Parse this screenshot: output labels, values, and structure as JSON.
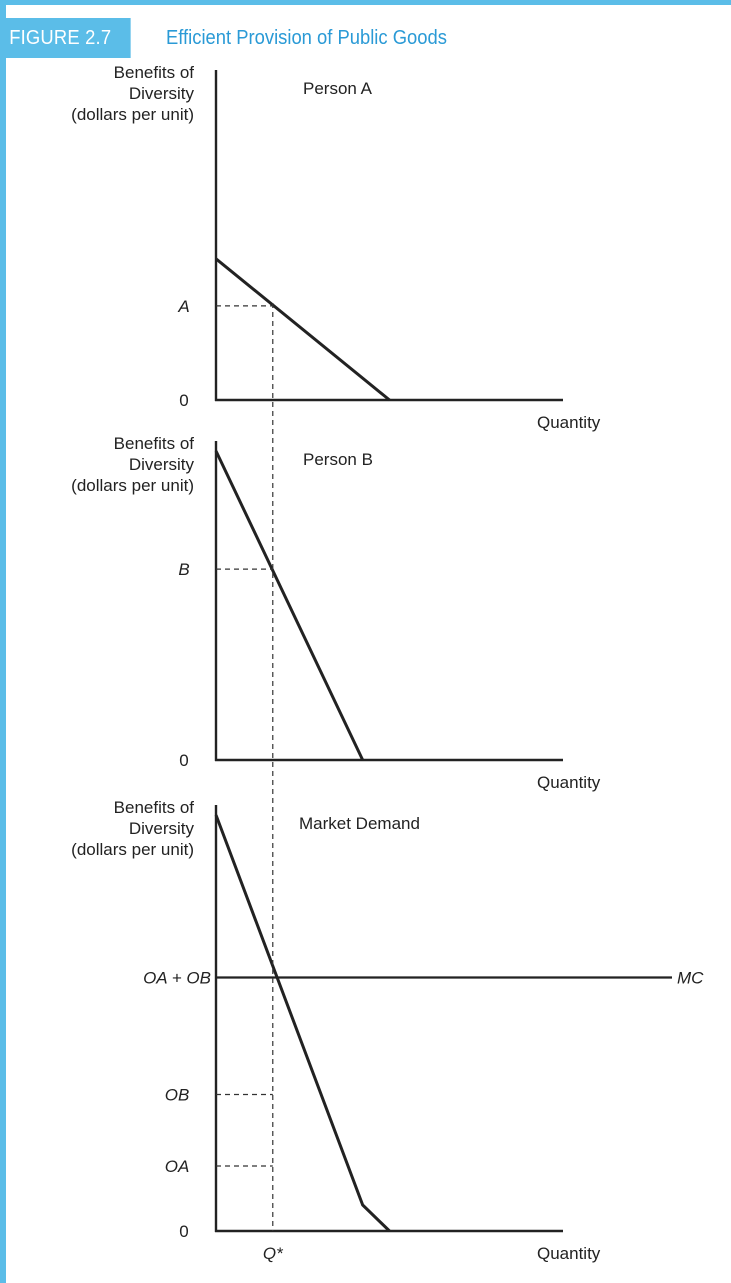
{
  "figure": {
    "label": "FIGURE 2.7",
    "title": "Efficient Provision of Public Goods"
  },
  "colors": {
    "accent": "#5bbde8",
    "title": "#2a9ad6",
    "ink": "#222222"
  },
  "chart_data": [
    {
      "type": "line",
      "title": "Person A",
      "ylabel": [
        "Benefits of",
        "Diversity",
        "(dollars per unit)"
      ],
      "xlabel": "Quantity",
      "origin_label": "0",
      "ylim": [
        0,
        3.4
      ],
      "xlim": [
        0,
        1.1
      ],
      "series": [
        {
          "x": [
            0,
            0.55
          ],
          "y": [
            1.5,
            0
          ]
        }
      ],
      "reference": {
        "y_label": "A",
        "y": 1.0,
        "x": 0.18
      }
    },
    {
      "type": "line",
      "title": "Person B",
      "ylabel": [
        "Benefits of",
        "Diversity",
        "(dollars per unit)"
      ],
      "xlabel": "Quantity",
      "origin_label": "0",
      "ylim": [
        0,
        3.4
      ],
      "xlim": [
        0,
        1.1
      ],
      "series": [
        {
          "x": [
            0,
            0.465
          ],
          "y": [
            3.4,
            0
          ]
        }
      ],
      "reference": {
        "y_label": "B",
        "y": 2.1,
        "x": 0.18
      }
    },
    {
      "type": "line",
      "title": "Market Demand",
      "ylabel": [
        "Benefits of",
        "Diversity",
        "(dollars per unit)"
      ],
      "xlabel": "Quantity",
      "origin_label": "0",
      "ylim": [
        0,
        6.4
      ],
      "xlim": [
        0,
        1.1
      ],
      "series": [
        {
          "x": [
            0,
            0.465,
            0.55
          ],
          "y": [
            6.4,
            0.4,
            0
          ]
        }
      ],
      "mc": {
        "label": "MC",
        "y": 3.9
      },
      "reference_lines": [
        {
          "y_label": "OA + OB",
          "y": 3.9
        },
        {
          "y_label": "OB",
          "y": 2.1
        },
        {
          "y_label": "OA",
          "y": 1.0
        }
      ],
      "q_star": {
        "label": "Q*",
        "x": 0.18
      }
    }
  ]
}
